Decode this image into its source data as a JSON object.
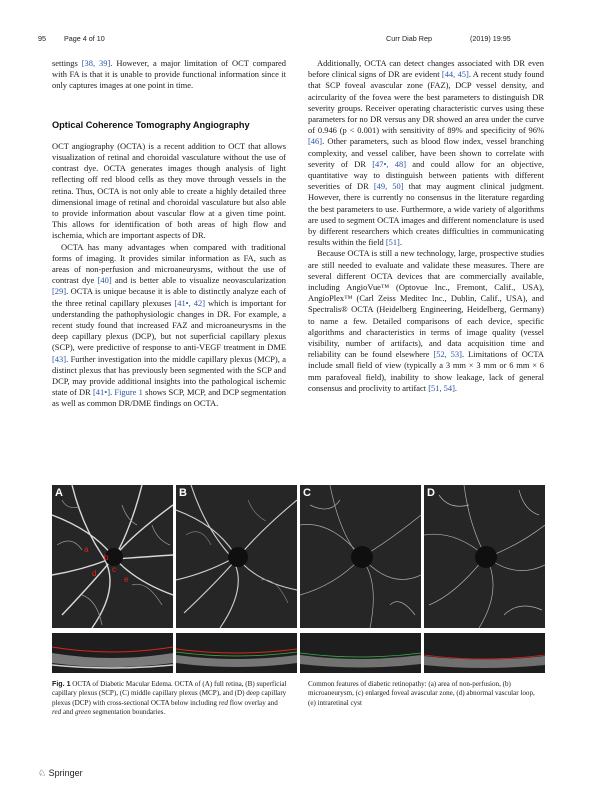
{
  "header": {
    "page_num": "95",
    "page_of": "Page 4 of 10",
    "journal": "Curr Diab Rep",
    "citation": "(2019) 19:95"
  },
  "left": {
    "p0_a": "settings ",
    "p0_r1": "[38, 39]",
    "p0_b": ". However, a major limitation of OCT compared with FA is that it is unable to provide functional information since it only captures images at one point in time.",
    "heading": "Optical Coherence Tomography Angiography",
    "p1": "OCT angiography (OCTA) is a recent addition to OCT that allows visualization of retinal and choroidal vasculature without the use of contrast dye. OCTA generates images though analysis of light reflecting off red blood cells as they move through vessels in the retina. Thus, OCTA is not only able to create a highly detailed three dimensional image of retinal and choroidal vasculature but also able to provide information about vascular flow at a given time point. This allows for identification of both areas of high flow and ischemia, which are important aspects of DR.",
    "p2_a": "OCTA has many advantages when compared with traditional forms of imaging. It provides similar information as FA, such as areas of non-perfusion and microaneurysms, without the use of contrast dye ",
    "p2_r1": "[40]",
    "p2_b": " and is better able to visualize neovascularization ",
    "p2_r2": "[29]",
    "p2_c": ". OCTA is unique because it is able to distinctly analyze each of the three retinal capillary plexuses ",
    "p2_r3": "[41•, 42]",
    "p2_d": " which is important for understanding the pathophysiologic changes in DR. For example, a recent study found that increased FAZ and microaneurysms in the deep capillary plexus (DCP), but not superficial capillary plexus (SCP), were predictive of response to anti-VEGF treatment in DME ",
    "p2_r4": "[43]",
    "p2_e": ". Further investigation into the middle capillary plexus (MCP), a distinct plexus that has previously been segmented with the SCP and DCP, may provide additional insights into the pathological ischemic state of DR ",
    "p2_r5": "[41•]",
    "p2_f": ". ",
    "p2_r6": "Figure 1",
    "p2_g": " shows SCP, MCP, and DCP segmentation as well as common DR/DME findings on OCTA."
  },
  "right": {
    "p1_a": "Additionally, OCTA can detect changes associated with DR even before clinical signs of DR are evident ",
    "p1_r1": "[44, 45]",
    "p1_b": ". A recent study found that SCP foveal avascular zone (FAZ), DCP vessel density, and acircularity of the fovea were the best parameters to distinguish DR severity groups. Receiver operating characteristic curves using these parameters for no DR versus any DR showed an area under the curve of 0.946 (p < 0.001) with sensitivity of 89% and specificity of 96% ",
    "p1_r2": "[46]",
    "p1_c": ". Other parameters, such as blood flow index, vessel branching complexity, and vessel caliber, have been shown to correlate with severity of DR ",
    "p1_r3": "[47•, 48]",
    "p1_d": " and could allow for an objective, quantitative way to distinguish between patients with different severities of DR ",
    "p1_r4": "[49, 50]",
    "p1_e": " that may augment clinical judgment. However, there is currently no consensus in the literature regarding the best parameters to use. Furthermore, a wide variety of algorithms are used to segment OCTA images and different nomenclature is used by different researchers which creates difficulties in communicating results within the field ",
    "p1_r5": "[51]",
    "p1_f": ".",
    "p2_a": "Because OCTA is still a new technology, large, prospective studies are still needed to evaluate and validate these measures. There are several different OCTA devices that are commercially available, including AngioVue™ (Optovue Inc., Fremont, Calif., USA), AngioPlex™ (Carl Zeiss Meditec Inc., Dublin, Calif., USA), and Spectralis® OCTA (Heidelberg Engineering, Heidelberg, Germany) to name a few. Detailed comparisons of each device, specific algorithms and characteristics in terms of image quality (vessel visibility, number of artifacts), and data acquisition time and reliability can be found elsewhere ",
    "p2_r1": "[52, 53]",
    "p2_b": ". Limitations of OCTA include small field of view (typically a 3 mm × 3 mm or 6 mm × 6 mm parafoveal field), inability to show leakage, lack of general consensus and proclivity to artifact ",
    "p2_r2": "[51, 54]",
    "p2_c": "."
  },
  "figure": {
    "panels": [
      "A",
      "B",
      "C",
      "D"
    ],
    "annotations": [
      "a",
      "b",
      "c",
      "d",
      "e"
    ],
    "caption_label": "Fig. 1",
    "caption_left_a": "  OCTA of Diabetic Macular Edema. OCTA of (A) full retina, (B) superficial capillary plexus (SCP), (C) middle capillary plexus (MCP), and (D) deep capillary plexus (DCP) with cross-sectional OCTA below including ",
    "caption_left_red": "red",
    "caption_left_b": " flow overlay and ",
    "caption_left_red2": "red",
    "caption_left_c": " and ",
    "caption_left_green": "green",
    "caption_left_d": " segmentation boundaries.",
    "caption_right": "Common features of diabetic retinopathy: (a) area of non-perfusion, (b) microaneurysm, (c) enlarged foveal avascular zone, (d) abnormal vascular loop, (e) intraretinal cyst"
  },
  "footer": {
    "publisher": "Springer"
  },
  "colors": {
    "link": "#2a55a8",
    "annotation": "#e0231b"
  }
}
